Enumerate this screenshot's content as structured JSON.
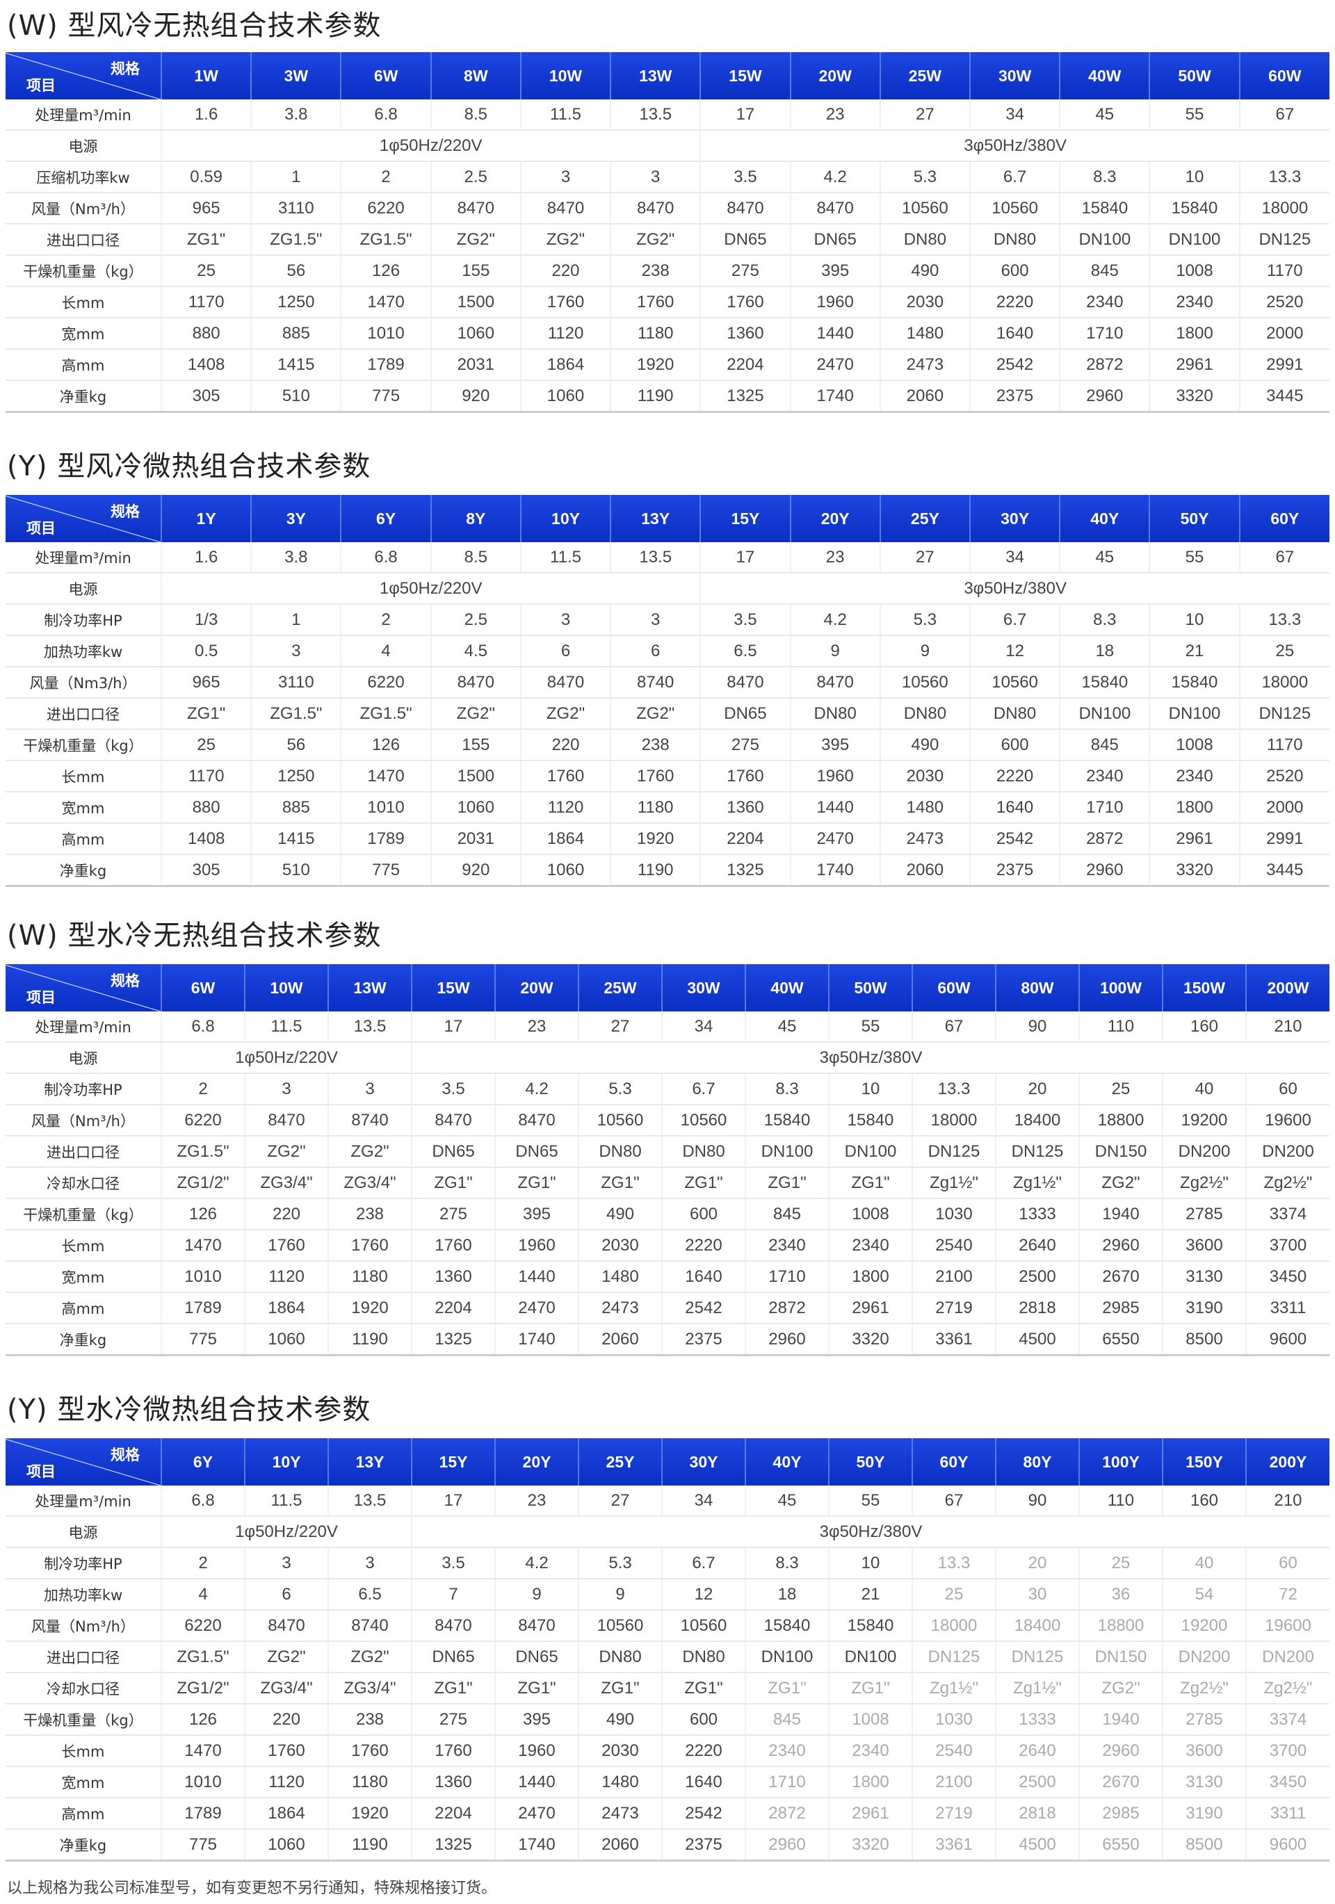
{
  "header_colors": {
    "header_bg": "#1d45e0",
    "header_text": "#ffffff"
  },
  "corner": {
    "spec": "规格",
    "item": "项目"
  },
  "tables": [
    {
      "title": "(W) 型风冷无热组合技术参数",
      "columns": [
        "1W",
        "3W",
        "6W",
        "8W",
        "10W",
        "13W",
        "15W",
        "20W",
        "25W",
        "30W",
        "40W",
        "50W",
        "60W"
      ],
      "rows": [
        {
          "label": "处理量m³/min",
          "values": [
            "1.6",
            "3.8",
            "6.8",
            "8.5",
            "11.5",
            "13.5",
            "17",
            "23",
            "27",
            "34",
            "45",
            "55",
            "67"
          ]
        },
        {
          "label": "电源",
          "spans": [
            {
              "text": "1φ50Hz/220V",
              "cols": 6
            },
            {
              "text": "3φ50Hz/380V",
              "cols": 7
            }
          ]
        },
        {
          "label": "压缩机功率kw",
          "values": [
            "0.59",
            "1",
            "2",
            "2.5",
            "3",
            "3",
            "3.5",
            "4.2",
            "5.3",
            "6.7",
            "8.3",
            "10",
            "13.3"
          ]
        },
        {
          "label": "风量（Nm³/h）",
          "values": [
            "965",
            "3110",
            "6220",
            "8470",
            "8470",
            "8470",
            "8470",
            "8470",
            "10560",
            "10560",
            "15840",
            "15840",
            "18000"
          ]
        },
        {
          "label": "进出口口径",
          "values": [
            "ZG1\"",
            "ZG1.5\"",
            "ZG1.5\"",
            "ZG2\"",
            "ZG2\"",
            "ZG2\"",
            "DN65",
            "DN65",
            "DN80",
            "DN80",
            "DN100",
            "DN100",
            "DN125"
          ]
        },
        {
          "label": "干燥机重量（kg）",
          "values": [
            "25",
            "56",
            "126",
            "155",
            "220",
            "238",
            "275",
            "395",
            "490",
            "600",
            "845",
            "1008",
            "1170"
          ]
        },
        {
          "label": "长mm",
          "values": [
            "1170",
            "1250",
            "1470",
            "1500",
            "1760",
            "1760",
            "1760",
            "1960",
            "2030",
            "2220",
            "2340",
            "2340",
            "2520"
          ]
        },
        {
          "label": "宽mm",
          "values": [
            "880",
            "885",
            "1010",
            "1060",
            "1120",
            "1180",
            "1360",
            "1440",
            "1480",
            "1640",
            "1710",
            "1800",
            "2000"
          ]
        },
        {
          "label": "高mm",
          "values": [
            "1408",
            "1415",
            "1789",
            "2031",
            "1864",
            "1920",
            "2204",
            "2470",
            "2473",
            "2542",
            "2872",
            "2961",
            "2991"
          ]
        },
        {
          "label": "净重kg",
          "values": [
            "305",
            "510",
            "775",
            "920",
            "1060",
            "1190",
            "1325",
            "1740",
            "2060",
            "2375",
            "2960",
            "3320",
            "3445"
          ]
        }
      ]
    },
    {
      "title": "(Y) 型风冷微热组合技术参数",
      "columns": [
        "1Y",
        "3Y",
        "6Y",
        "8Y",
        "10Y",
        "13Y",
        "15Y",
        "20Y",
        "25Y",
        "30Y",
        "40Y",
        "50Y",
        "60Y"
      ],
      "rows": [
        {
          "label": "处理量m³/min",
          "values": [
            "1.6",
            "3.8",
            "6.8",
            "8.5",
            "11.5",
            "13.5",
            "17",
            "23",
            "27",
            "34",
            "45",
            "55",
            "67"
          ]
        },
        {
          "label": "电源",
          "spans": [
            {
              "text": "1φ50Hz/220V",
              "cols": 6
            },
            {
              "text": "3φ50Hz/380V",
              "cols": 7
            }
          ]
        },
        {
          "label": "制冷功率HP",
          "values": [
            "1/3",
            "1",
            "2",
            "2.5",
            "3",
            "3",
            "3.5",
            "4.2",
            "5.3",
            "6.7",
            "8.3",
            "10",
            "13.3"
          ]
        },
        {
          "label": "加热功率kw",
          "values": [
            "0.5",
            "3",
            "4",
            "4.5",
            "6",
            "6",
            "6.5",
            "9",
            "9",
            "12",
            "18",
            "21",
            "25"
          ]
        },
        {
          "label": "风量（Nm3/h）",
          "values": [
            "965",
            "3110",
            "6220",
            "8470",
            "8470",
            "8740",
            "8470",
            "8470",
            "10560",
            "10560",
            "15840",
            "15840",
            "18000"
          ]
        },
        {
          "label": "进出口口径",
          "values": [
            "ZG1\"",
            "ZG1.5\"",
            "ZG1.5\"",
            "ZG2\"",
            "ZG2\"",
            "ZG2\"",
            "DN65",
            "DN80",
            "DN80",
            "DN80",
            "DN100",
            "DN100",
            "DN125"
          ]
        },
        {
          "label": "干燥机重量（kg）",
          "values": [
            "25",
            "56",
            "126",
            "155",
            "220",
            "238",
            "275",
            "395",
            "490",
            "600",
            "845",
            "1008",
            "1170"
          ]
        },
        {
          "label": "长mm",
          "values": [
            "1170",
            "1250",
            "1470",
            "1500",
            "1760",
            "1760",
            "1760",
            "1960",
            "2030",
            "2220",
            "2340",
            "2340",
            "2520"
          ]
        },
        {
          "label": "宽mm",
          "values": [
            "880",
            "885",
            "1010",
            "1060",
            "1120",
            "1180",
            "1360",
            "1440",
            "1480",
            "1640",
            "1710",
            "1800",
            "2000"
          ]
        },
        {
          "label": "高mm",
          "values": [
            "1408",
            "1415",
            "1789",
            "2031",
            "1864",
            "1920",
            "2204",
            "2470",
            "2473",
            "2542",
            "2872",
            "2961",
            "2991"
          ]
        },
        {
          "label": "净重kg",
          "values": [
            "305",
            "510",
            "775",
            "920",
            "1060",
            "1190",
            "1325",
            "1740",
            "2060",
            "2375",
            "2960",
            "3320",
            "3445"
          ]
        }
      ]
    },
    {
      "title": "(W) 型水冷无热组合技术参数",
      "columns": [
        "6W",
        "10W",
        "13W",
        "15W",
        "20W",
        "25W",
        "30W",
        "40W",
        "50W",
        "60W",
        "80W",
        "100W",
        "150W",
        "200W"
      ],
      "rows": [
        {
          "label": "处理量m³/min",
          "values": [
            "6.8",
            "11.5",
            "13.5",
            "17",
            "23",
            "27",
            "34",
            "45",
            "55",
            "67",
            "90",
            "110",
            "160",
            "210"
          ]
        },
        {
          "label": "电源",
          "spans": [
            {
              "text": "1φ50Hz/220V",
              "cols": 3
            },
            {
              "text": "3φ50Hz/380V",
              "cols": 11
            }
          ]
        },
        {
          "label": "制冷功率HP",
          "values": [
            "2",
            "3",
            "3",
            "3.5",
            "4.2",
            "5.3",
            "6.7",
            "8.3",
            "10",
            "13.3",
            "20",
            "25",
            "40",
            "60"
          ]
        },
        {
          "label": "风量（Nm³/h）",
          "values": [
            "6220",
            "8470",
            "8740",
            "8470",
            "8470",
            "10560",
            "10560",
            "15840",
            "15840",
            "18000",
            "18400",
            "18800",
            "19200",
            "19600"
          ]
        },
        {
          "label": "进出口口径",
          "values": [
            "ZG1.5\"",
            "ZG2\"",
            "ZG2\"",
            "DN65",
            "DN65",
            "DN80",
            "DN80",
            "DN100",
            "DN100",
            "DN125",
            "DN125",
            "DN150",
            "DN200",
            "DN200"
          ]
        },
        {
          "label": "冷却水口径",
          "values": [
            "ZG1/2\"",
            "ZG3/4\"",
            "ZG3/4\"",
            "ZG1\"",
            "ZG1\"",
            "ZG1\"",
            "ZG1\"",
            "ZG1\"",
            "ZG1\"",
            "Zg1½\"",
            "Zg1½\"",
            "ZG2\"",
            "Zg2½\"",
            "Zg2½\""
          ]
        },
        {
          "label": "干燥机重量（kg）",
          "values": [
            "126",
            "220",
            "238",
            "275",
            "395",
            "490",
            "600",
            "845",
            "1008",
            "1030",
            "1333",
            "1940",
            "2785",
            "3374"
          ]
        },
        {
          "label": "长mm",
          "values": [
            "1470",
            "1760",
            "1760",
            "1760",
            "1960",
            "2030",
            "2220",
            "2340",
            "2340",
            "2540",
            "2640",
            "2960",
            "3600",
            "3700"
          ]
        },
        {
          "label": "宽mm",
          "values": [
            "1010",
            "1120",
            "1180",
            "1360",
            "1440",
            "1480",
            "1640",
            "1710",
            "1800",
            "2100",
            "2500",
            "2670",
            "3130",
            "3450"
          ]
        },
        {
          "label": "高mm",
          "values": [
            "1789",
            "1864",
            "1920",
            "2204",
            "2470",
            "2473",
            "2542",
            "2872",
            "2961",
            "2719",
            "2818",
            "2985",
            "3190",
            "3311"
          ]
        },
        {
          "label": "净重kg",
          "values": [
            "775",
            "1060",
            "1190",
            "1325",
            "1740",
            "2060",
            "2375",
            "2960",
            "3320",
            "3361",
            "4500",
            "6550",
            "8500",
            "9600"
          ]
        }
      ]
    },
    {
      "title": "(Y) 型水冷微热组合技术参数",
      "faded_from_column": 7,
      "columns": [
        "6Y",
        "10Y",
        "13Y",
        "15Y",
        "20Y",
        "25Y",
        "30Y",
        "40Y",
        "50Y",
        "60Y",
        "80Y",
        "100Y",
        "150Y",
        "200Y"
      ],
      "rows": [
        {
          "label": "处理量m³/min",
          "values": [
            "6.8",
            "11.5",
            "13.5",
            "17",
            "23",
            "27",
            "34",
            "45",
            "55",
            "67",
            "90",
            "110",
            "160",
            "210"
          ]
        },
        {
          "label": "电源",
          "spans": [
            {
              "text": "1φ50Hz/220V",
              "cols": 3
            },
            {
              "text": "3φ50Hz/380V",
              "cols": 11
            }
          ]
        },
        {
          "label": "制冷功率HP",
          "values": [
            "2",
            "3",
            "3",
            "3.5",
            "4.2",
            "5.3",
            "6.7",
            "8.3",
            "10",
            "13.3",
            "20",
            "25",
            "40",
            "60"
          ]
        },
        {
          "label": "加热功率kw",
          "values": [
            "4",
            "6",
            "6.5",
            "7",
            "9",
            "9",
            "12",
            "18",
            "21",
            "25",
            "30",
            "36",
            "54",
            "72"
          ]
        },
        {
          "label": "风量（Nm³/h）",
          "values": [
            "6220",
            "8470",
            "8740",
            "8470",
            "8470",
            "10560",
            "10560",
            "15840",
            "15840",
            "18000",
            "18400",
            "18800",
            "19200",
            "19600"
          ]
        },
        {
          "label": "进出口口径",
          "values": [
            "ZG1.5\"",
            "ZG2\"",
            "ZG2\"",
            "DN65",
            "DN65",
            "DN80",
            "DN80",
            "DN100",
            "DN100",
            "DN125",
            "DN125",
            "DN150",
            "DN200",
            "DN200"
          ]
        },
        {
          "label": "冷却水口径",
          "values": [
            "ZG1/2\"",
            "ZG3/4\"",
            "ZG3/4\"",
            "ZG1\"",
            "ZG1\"",
            "ZG1\"",
            "ZG1\"",
            "ZG1\"",
            "ZG1\"",
            "Zg1½\"",
            "Zg1½\"",
            "ZG2\"",
            "Zg2½\"",
            "Zg2½\""
          ]
        },
        {
          "label": "干燥机重量（kg）",
          "values": [
            "126",
            "220",
            "238",
            "275",
            "395",
            "490",
            "600",
            "845",
            "1008",
            "1030",
            "1333",
            "1940",
            "2785",
            "3374"
          ]
        },
        {
          "label": "长mm",
          "values": [
            "1470",
            "1760",
            "1760",
            "1760",
            "1960",
            "2030",
            "2220",
            "2340",
            "2340",
            "2540",
            "2640",
            "2960",
            "3600",
            "3700"
          ]
        },
        {
          "label": "宽mm",
          "values": [
            "1010",
            "1120",
            "1180",
            "1360",
            "1440",
            "1480",
            "1640",
            "1710",
            "1800",
            "2100",
            "2500",
            "2670",
            "3130",
            "3450"
          ]
        },
        {
          "label": "高mm",
          "values": [
            "1789",
            "1864",
            "1920",
            "2204",
            "2470",
            "2473",
            "2542",
            "2872",
            "2961",
            "2719",
            "2818",
            "2985",
            "3190",
            "3311"
          ]
        },
        {
          "label": "净重kg",
          "values": [
            "775",
            "1060",
            "1190",
            "1325",
            "1740",
            "2060",
            "2375",
            "2960",
            "3320",
            "3361",
            "4500",
            "6550",
            "8500",
            "9600"
          ]
        }
      ]
    }
  ],
  "footer": "以上规格为我公司标准型号，如有变更恕不另行通知，特殊规格接订货。"
}
